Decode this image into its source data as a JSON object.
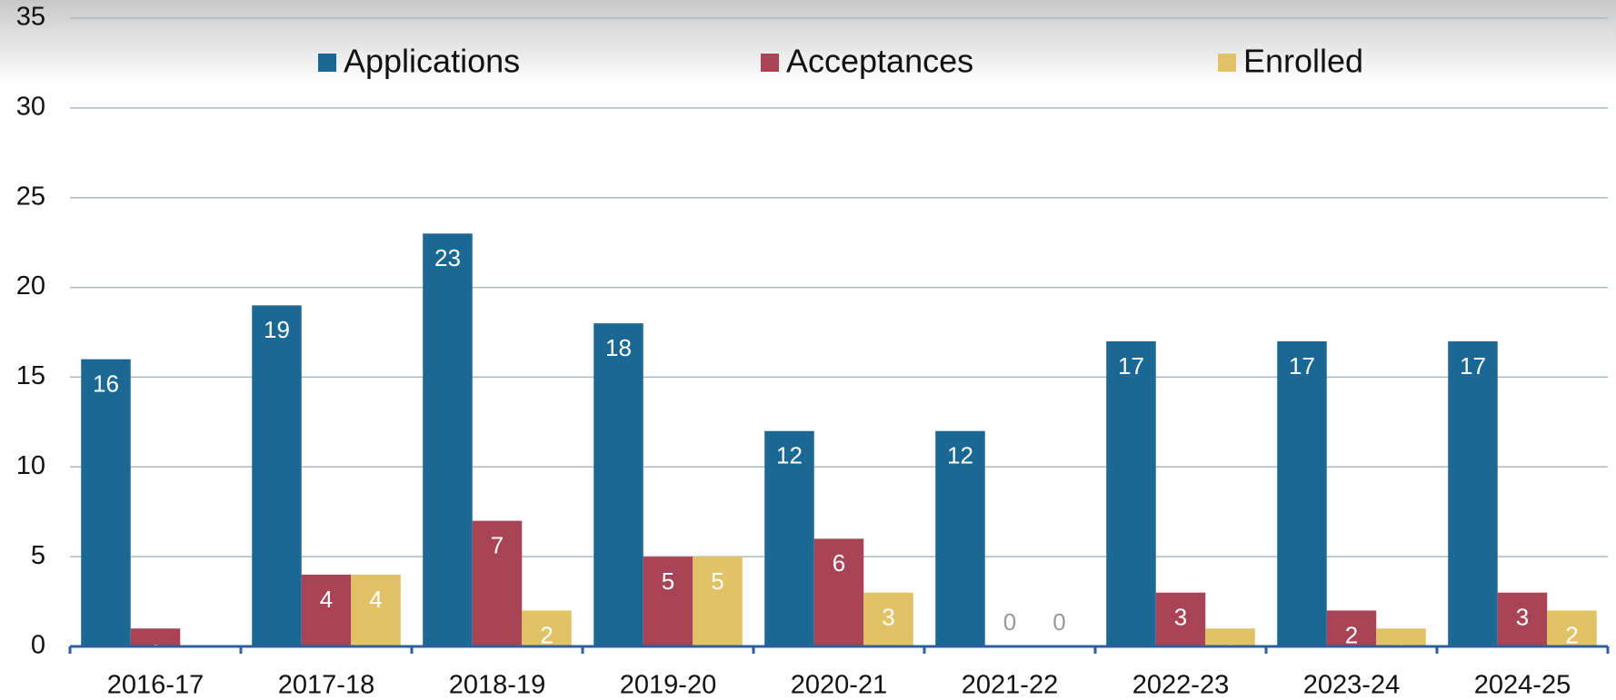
{
  "chart_data": {
    "type": "bar",
    "categories": [
      "2016-17",
      "2017-18",
      "2018-19",
      "2019-20",
      "2020-21",
      "2021-22",
      "2022-23",
      "2023-24",
      "2024-25"
    ],
    "series": [
      {
        "name": "Applications",
        "color": "#1b6894",
        "values": [
          16,
          19,
          23,
          18,
          12,
          12,
          17,
          17,
          17
        ]
      },
      {
        "name": "Acceptances",
        "color": "#a94457",
        "values": [
          1,
          4,
          7,
          5,
          6,
          0,
          3,
          2,
          3
        ]
      },
      {
        "name": "Enrolled",
        "color": "#e2c266",
        "values": [
          0,
          4,
          2,
          5,
          3,
          0,
          1,
          1,
          2
        ],
        "value_labels": [
          null,
          "4",
          "2",
          "5",
          "3",
          "0",
          "1",
          "1",
          "2"
        ]
      }
    ],
    "ylim": [
      0,
      35
    ],
    "yticks": [
      0,
      5,
      10,
      15,
      20,
      25,
      30,
      35
    ],
    "grid": true,
    "legend": "top"
  }
}
